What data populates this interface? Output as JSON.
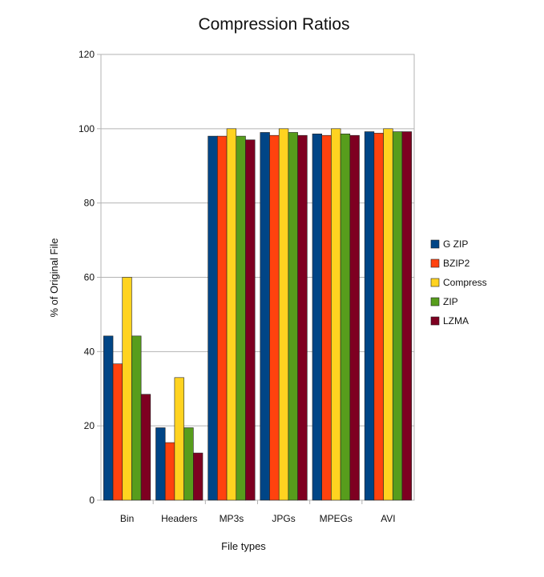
{
  "chart_data": {
    "type": "bar",
    "title": "Compression Ratios",
    "xlabel": "File types",
    "ylabel": "% of Original File",
    "ylim": [
      0,
      120
    ],
    "yticks": [
      0,
      20,
      40,
      60,
      80,
      100,
      120
    ],
    "grid": true,
    "legend_position": "right",
    "categories": [
      "Bin",
      "Headers",
      "MP3s",
      "JPGs",
      "MPEGs",
      "AVI"
    ],
    "series": [
      {
        "name": "G ZIP",
        "color": "#004586",
        "values": [
          44.2,
          19.5,
          98.0,
          99.0,
          98.6,
          99.2
        ]
      },
      {
        "name": "BZIP2",
        "color": "#ff420e",
        "values": [
          36.7,
          15.5,
          98.0,
          98.2,
          98.2,
          98.8
        ]
      },
      {
        "name": "Compress",
        "color": "#ffd320",
        "values": [
          60.0,
          33.0,
          100.0,
          100.0,
          100.0,
          100.0
        ]
      },
      {
        "name": "ZIP",
        "color": "#579d1c",
        "values": [
          44.2,
          19.5,
          98.0,
          99.0,
          98.6,
          99.2
        ]
      },
      {
        "name": "LZMA",
        "color": "#7e0021",
        "values": [
          28.5,
          12.7,
          97.0,
          98.2,
          98.2,
          99.2
        ]
      }
    ]
  }
}
